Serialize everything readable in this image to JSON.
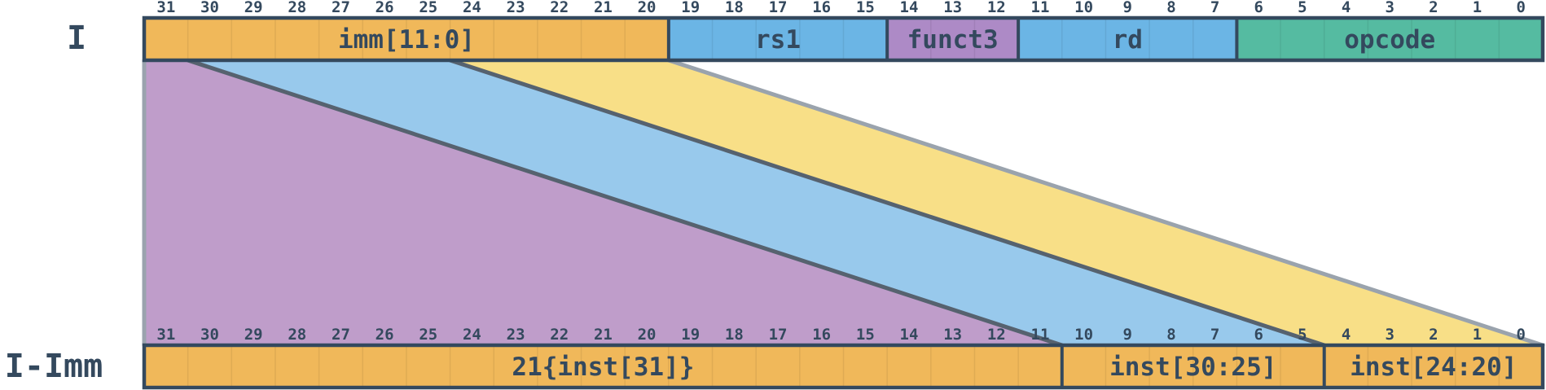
{
  "rows": {
    "i": {
      "label": "I",
      "fields": [
        {
          "name": "imm-field",
          "label": "imm[11:0]",
          "hi": 31,
          "lo": 20,
          "color": "#f0b85a"
        },
        {
          "name": "rs1-field",
          "label": "rs1",
          "hi": 19,
          "lo": 15,
          "color": "#6bb5e5"
        },
        {
          "name": "funct3-field",
          "label": "funct3",
          "hi": 14,
          "lo": 12,
          "color": "#ad8ac6"
        },
        {
          "name": "rd-field",
          "label": "rd",
          "hi": 11,
          "lo": 7,
          "color": "#6bb5e5"
        },
        {
          "name": "opcode-field",
          "label": "opcode",
          "hi": 6,
          "lo": 0,
          "color": "#55bba1"
        }
      ]
    },
    "imm": {
      "label": "I-Imm",
      "fields": [
        {
          "name": "sign-extend-field",
          "label": "21{inst[31]}",
          "hi": 31,
          "lo": 11,
          "color": "#f0b85a"
        },
        {
          "name": "inst-30-25-field",
          "label": "inst[30:25]",
          "hi": 10,
          "lo": 5,
          "color": "#f0b85a"
        },
        {
          "name": "inst-24-20-field",
          "label": "inst[24:20]",
          "hi": 4,
          "lo": 0,
          "color": "#f0b85a"
        }
      ]
    }
  },
  "bit_numbers": [
    "31",
    "30",
    "29",
    "28",
    "27",
    "26",
    "25",
    "24",
    "23",
    "22",
    "21",
    "20",
    "19",
    "18",
    "17",
    "16",
    "15",
    "14",
    "13",
    "12",
    "11",
    "10",
    "9",
    "8",
    "7",
    "6",
    "5",
    "4",
    "3",
    "2",
    "1",
    "0"
  ],
  "mappings": [
    {
      "name": "mapping-bit31-sign-extend",
      "from_hi": 31,
      "from_lo": 31,
      "to_hi": 31,
      "to_lo": 11,
      "color": "#bf9dca"
    },
    {
      "name": "mapping-bits30-25",
      "from_hi": 30,
      "from_lo": 25,
      "to_hi": 10,
      "to_lo": 5,
      "color": "#98c9ec"
    },
    {
      "name": "mapping-bits24-20",
      "from_hi": 24,
      "from_lo": 20,
      "to_hi": 4,
      "to_lo": 0,
      "color": "#f8df87"
    }
  ],
  "colors": {
    "outline": "#34495e",
    "mapping_edge": "#56626f",
    "mapping_outer_edge": "#9aa3ad"
  }
}
